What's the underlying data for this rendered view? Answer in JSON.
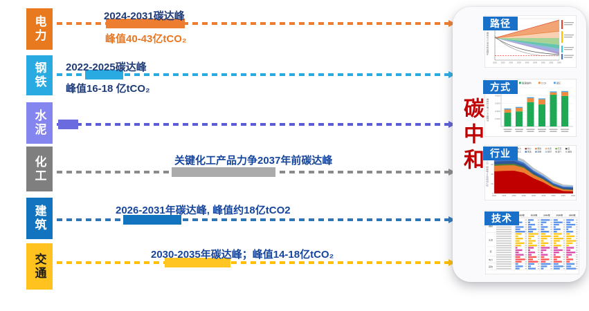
{
  "center_label": {
    "text": "碳中和",
    "color": "#C00000"
  },
  "panel": {
    "badges": [
      "路径",
      "方式",
      "行业",
      "技术"
    ],
    "badge_color": "#1870C8"
  },
  "sectors": [
    {
      "label": "电力",
      "box_color": "#E9791F",
      "dash_color": "#ED7D31",
      "bar_color": "#ED7D31",
      "texts": {
        "line1": "2024-2031碳达峰",
        "line2": "峰值40-43亿tCO₂"
      },
      "text_colors": {
        "line1": "#1F3C78",
        "line2": "#E87722"
      }
    },
    {
      "label": "钢铁",
      "box_color": "#29ABE2",
      "dash_color": "#29ABE2",
      "bar_color": "#29ABE2",
      "texts": {
        "line1": "2022-2025碳达峰",
        "line2": "峰值16-18 亿tCO₂"
      },
      "text_colors": {
        "line1": "#1F3C78",
        "line2": "#1F3C78"
      }
    },
    {
      "label": "水泥",
      "box_color": "#8585F0",
      "dash_color": "#5C5CD6",
      "bar_color": "#6B6BE0",
      "texts": {},
      "text_colors": {}
    },
    {
      "label": "化工",
      "box_color": "#7F7F7F",
      "dash_color": "#8A8A8A",
      "bar_color": "#ABABAB",
      "texts": {
        "line1": "关键化工产品力争2037年前碳达峰"
      },
      "text_colors": {
        "line1": "#16459C"
      }
    },
    {
      "label": "建筑",
      "box_color": "#1273BE",
      "dash_color": "#2E75B6",
      "bar_color": "#1273BE",
      "texts": {
        "line1": "2026-2031年碳达峰, 峰值约18亿tCO2"
      },
      "text_colors": {
        "line1": "#16459C"
      }
    },
    {
      "label": "交通",
      "box_color": "#FFC21E",
      "dash_color": "#FFC000",
      "bar_color": "#FFC623",
      "texts": {
        "line1": "2030-2035年碳达峰；峰值14-18亿tCO₂"
      },
      "text_colors": {
        "line1": "#16459C"
      },
      "label_color": "#1A1A1A"
    }
  ],
  "chart_data": [
    {
      "type": "area",
      "title": "路径",
      "ylabel": "中国能源活动CO₂排放量（亿t）",
      "x_ticks": [
        "2020",
        "2025",
        "2030",
        "2035",
        "2040",
        "2045",
        "2050",
        "2055",
        "2060"
      ],
      "x_range": [
        2020,
        2060
      ],
      "start_value": 100,
      "zero_line": 0,
      "note": "多情景排放路径扇形图：基准情景持续上升（橙色带），减排情景逐步下降（绿/青/蓝/紫色带），深度脱碳路径降至零附近（黑线），红色虚线为零排放参考线；右侧以红/黄/青/蓝色竖条标注情景组（标签字号过小不可辨）",
      "scenarios": [
        {
          "color": "#F19A66",
          "end_top": 202,
          "end_bottom": 139,
          "edge": "#E0512B"
        },
        {
          "color": "#F8CBA8",
          "end_top": 139,
          "end_bottom": 100,
          "edge": "#ED7D31"
        },
        {
          "color": "#9FCE8C",
          "end_top": 100,
          "end_bottom": 61
        },
        {
          "color": "#55BFA5",
          "end_top": 61,
          "end_bottom": 39
        },
        {
          "color": "#8FAADC",
          "end_top": 39,
          "end_bottom": 21.5
        },
        {
          "color": "#A393CD",
          "end_top": 21.5,
          "end_bottom": 8
        }
      ],
      "group_marker_colors": [
        "#E5402E",
        "#FFC000",
        "#35C8DC",
        "#4472C4"
      ]
    },
    {
      "type": "stacked-bar",
      "title": "方式",
      "ylabel": "全国累计CO₂减排贡献量",
      "y_tick_labels": [
        "5,500",
        "4,500",
        "3,500",
        "2,500",
        "1,500"
      ],
      "legend": [
        "能源结构",
        "CCS",
        "碳汇"
      ],
      "legend_colors": [
        "#1FA954",
        "#F08A3C",
        "#4D9DE0"
      ],
      "bars": 6,
      "series": [
        {
          "name": "能源结构",
          "color": "#1FA954",
          "values_rel": [
            0.36,
            0.39,
            0.63,
            0.57,
            0.82,
            0.79
          ]
        },
        {
          "name": "CCS",
          "color": "#F08A3C",
          "values_rel": [
            0.08,
            0.09,
            0.1,
            0.13,
            0.06,
            0.1
          ]
        },
        {
          "name": "碳汇",
          "color": "#4D9DE0",
          "values_rel": [
            0.025,
            0.025,
            0.025,
            0.025,
            0.025,
            0.025
          ]
        }
      ],
      "note": "六组情景柱状图，底部两行情景标签字号过小不可辨"
    },
    {
      "type": "stacked-area",
      "title": "行业",
      "ylabel": "各行业直接CO₂排放量（亿t）",
      "x_ticks": [
        "2020",
        "2025",
        "2030",
        "2035",
        "2040",
        "2045",
        "2050",
        "2055",
        "2060"
      ],
      "y_tick_labels": [
        "0",
        "20",
        "40",
        "60",
        "80"
      ],
      "legend_row1": [
        "电力",
        "热力",
        "钢铁",
        "水泥",
        "石灰",
        "铝"
      ],
      "legend_row1_colors": [
        "#C00000",
        "#963634",
        "#ED7D31",
        "#F4B183",
        "#70AD47",
        "#4A4A4A"
      ],
      "legend_row2": [
        "化工",
        "炼油",
        "城镇",
        "建材",
        "油气",
        "其他"
      ],
      "legend_row2_colors": [
        "#2F5597",
        "#4472C4",
        "#5B9BD5",
        "#9DC3E6",
        "#A6A6A6",
        "#BFBFBF"
      ],
      "note": "总排放2030年前后达峰后快速下降，2050年后仅存少量剩余排放",
      "layers": [
        {
          "name": "其他/灰色层",
          "color": "#BFBFBF",
          "stack_top": [
            77.1,
            78.0,
            77.9,
            70.0,
            52.9,
            40.7,
            26.4,
            18.6,
            17.1
          ]
        },
        {
          "name": "浅蓝层",
          "color": "#9DC3E6",
          "stack_top": [
            73.6,
            74.4,
            74.3,
            66.4,
            49.3,
            37.9,
            23.6,
            16.4,
            15.7
          ]
        },
        {
          "name": "中蓝层",
          "color": "#4472C4",
          "stack_top": [
            70.0,
            71.0,
            71.4,
            63.6,
            47.1,
            35.7,
            21.4,
            14.3,
            13.6
          ]
        },
        {
          "name": "深蓝层",
          "color": "#2F5597",
          "stack_top": [
            65.7,
            66.7,
            67.1,
            60.0,
            44.3,
            32.9,
            19.3,
            12.1,
            11.4
          ]
        },
        {
          "name": "绿色层",
          "color": "#548235",
          "stack_top": [
            60.0,
            61.0,
            61.4,
            55.0,
            40.0,
            30.0,
            17.1,
            9.3,
            7.9
          ]
        },
        {
          "name": "橙色层",
          "color": "#ED7D31",
          "stack_top": [
            57.1,
            58.1,
            58.6,
            52.9,
            38.6,
            28.6,
            15.7,
            8.6,
            7.1
          ]
        },
        {
          "name": "电力/红色层",
          "color": "#C00000",
          "stack_top": [
            45.7,
            46.7,
            47.1,
            42.9,
            31.4,
            22.9,
            11.4,
            5.0,
            4.3
          ]
        }
      ]
    },
    {
      "type": "table",
      "title": "技术",
      "columns": [
        "2025年",
        "2030年",
        "2040年",
        "2050年",
        "2060年"
      ],
      "groups": [
        {
          "label": "钢铁",
          "rows": 6,
          "bar_color": "#4A86E8"
        },
        {
          "label": "水泥",
          "rows": 6,
          "bar_color": "#FFC000"
        },
        {
          "label": "铝",
          "rows": 4,
          "bar_color": "#D5359F"
        },
        {
          "label": "电力",
          "rows": 3,
          "bar_color": "#FF4040"
        },
        {
          "label": "其他",
          "rows": 3,
          "bar_color": "#4A86E8"
        }
      ],
      "note": "各行业减排技术渗透率数据条表，单元格数字与行名字号过小不可辨"
    }
  ]
}
